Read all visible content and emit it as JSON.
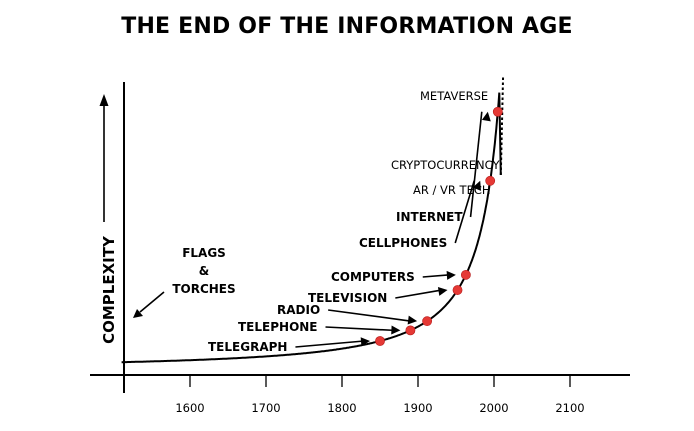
{
  "chart_data": {
    "type": "line",
    "title": "THE END OF THE INFORMATION AGE",
    "xlabel": "",
    "ylabel": "COMPLEXITY",
    "xlim": [
      1510,
      2190
    ],
    "x_ticks": [
      "1600",
      "1700",
      "1800",
      "1900",
      "2000",
      "2100"
    ],
    "x_tick_values": [
      1600,
      1700,
      1800,
      1900,
      2000,
      2100
    ],
    "grid": false,
    "curve_color": "#000000",
    "point_color": "#e53935",
    "points": [
      {
        "label": "TELEGRAPH",
        "x": 1850
      },
      {
        "label": "TELEPHONE",
        "x": 1890
      },
      {
        "label": "RADIO",
        "x": 1912
      },
      {
        "label": "TELEVISION",
        "x": 1952
      },
      {
        "label": "COMPUTERS",
        "x": 1963
      },
      {
        "label": "CELLPHONES",
        "x": 1995
      },
      {
        "label": "INTERNET",
        "x": 2005
      }
    ],
    "annotations": [
      {
        "label": "METAVERSE",
        "style": "light"
      },
      {
        "label": "CRYPTOCURRENCY",
        "style": "light"
      },
      {
        "label": "AR / VR TECH",
        "style": "light"
      },
      {
        "label": "FLAGS",
        "style": "bold"
      },
      {
        "label": "&",
        "style": "bold"
      },
      {
        "label": "TORCHES",
        "style": "bold"
      }
    ]
  }
}
